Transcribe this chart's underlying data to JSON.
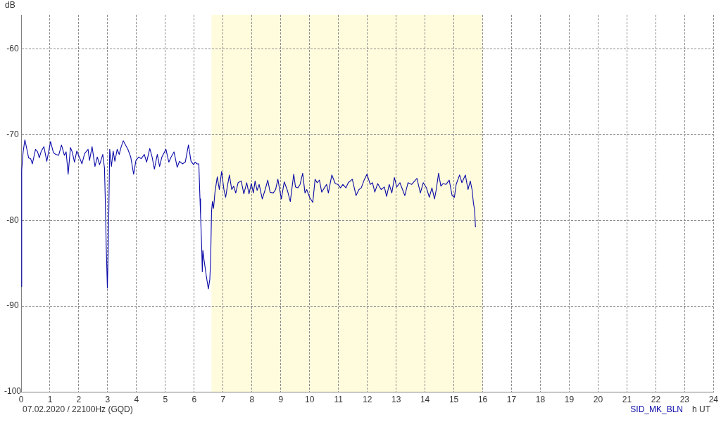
{
  "chart_data": {
    "type": "line",
    "ylabel": "dB",
    "xlabel": "h UT",
    "annotations": [
      "07.02.2020 / 22100Hz (GQD)"
    ],
    "x": [
      0,
      0.02,
      0.07,
      0.13,
      0.2,
      0.26,
      0.33,
      0.39,
      0.5,
      0.57,
      0.63,
      0.7,
      0.79,
      0.89,
      1.02,
      1.12,
      1.2,
      1.3,
      1.4,
      1.5,
      1.56,
      1.63,
      1.71,
      1.77,
      1.85,
      1.93,
      2.03,
      2.11,
      2.2,
      2.32,
      2.37,
      2.46,
      2.56,
      2.64,
      2.72,
      2.83,
      2.89,
      2.92,
      2.95,
      2.99,
      3.03,
      3.07,
      3.13,
      3.19,
      3.25,
      3.33,
      3.4,
      3.46,
      3.54,
      3.62,
      3.7,
      3.8,
      3.9,
      3.98,
      4.08,
      4.16,
      4.27,
      4.35,
      4.46,
      4.54,
      4.62,
      4.72,
      4.8,
      4.88,
      5.02,
      5.12,
      5.2,
      5.3,
      5.41,
      5.49,
      5.59,
      5.69,
      5.8,
      5.89,
      5.98,
      6.03,
      6.1,
      6.16,
      6.2,
      6.22,
      6.26,
      6.28,
      6.3,
      6.34,
      6.42,
      6.49,
      6.54,
      6.57,
      6.6,
      6.63,
      6.67,
      6.72,
      6.76,
      6.8,
      6.87,
      6.95,
      7.03,
      7.09,
      7.15,
      7.22,
      7.3,
      7.37,
      7.44,
      7.52,
      7.63,
      7.72,
      7.82,
      7.9,
      7.98,
      8.05,
      8.11,
      8.18,
      8.25,
      8.36,
      8.46,
      8.55,
      8.63,
      8.74,
      8.82,
      8.9,
      9.02,
      9.12,
      9.23,
      9.33,
      9.45,
      9.51,
      9.59,
      9.67,
      9.76,
      9.84,
      9.9,
      10.0,
      10.11,
      10.19,
      10.26,
      10.34,
      10.42,
      10.53,
      10.59,
      10.65,
      10.77,
      10.89,
      10.98,
      11.07,
      11.15,
      11.26,
      11.34,
      11.48,
      11.61,
      11.71,
      11.79,
      11.89,
      11.99,
      12.1,
      12.18,
      12.26,
      12.36,
      12.48,
      12.59,
      12.67,
      12.76,
      12.85,
      12.94,
      13.02,
      13.13,
      13.3,
      13.41,
      13.54,
      13.72,
      13.84,
      13.94,
      14.05,
      14.15,
      14.24,
      14.33,
      14.39,
      14.47,
      14.55,
      14.63,
      14.73,
      14.84,
      14.94,
      15.02,
      15.08,
      15.2,
      15.28,
      15.4,
      15.49,
      15.57,
      15.63,
      15.68,
      15.72,
      15.75
    ],
    "series": [
      {
        "name": "SID_MK_BLN",
        "color": "#0a0aa8",
        "values": [
          -87.7,
          -74.1,
          -72.0,
          -70.6,
          -71.7,
          -72.7,
          -72.8,
          -73.4,
          -71.7,
          -72.0,
          -72.7,
          -71.9,
          -71.4,
          -73.1,
          -70.8,
          -72.1,
          -72.3,
          -72.4,
          -71.2,
          -72.4,
          -72.0,
          -74.6,
          -71.5,
          -72.0,
          -73.2,
          -71.9,
          -72.7,
          -73.4,
          -72.2,
          -71.7,
          -73.0,
          -71.4,
          -73.7,
          -72.6,
          -73.5,
          -72.3,
          -73.9,
          -78.0,
          -83.0,
          -87.9,
          -81.4,
          -71.7,
          -73.7,
          -71.9,
          -73.1,
          -71.7,
          -72.3,
          -71.5,
          -70.7,
          -71.2,
          -71.7,
          -72.6,
          -74.6,
          -73.0,
          -72.6,
          -72.8,
          -72.3,
          -73.2,
          -71.6,
          -72.6,
          -74.0,
          -72.3,
          -73.7,
          -72.6,
          -71.7,
          -73.2,
          -72.6,
          -72.0,
          -73.8,
          -73.1,
          -73.4,
          -73.2,
          -71.2,
          -73.1,
          -73.5,
          -73.2,
          -73.4,
          -73.4,
          -77.5,
          -79.4,
          -83.2,
          -86.0,
          -83.5,
          -84.6,
          -86.5,
          -88.0,
          -86.9,
          -84.6,
          -79.0,
          -77.8,
          -78.6,
          -76.7,
          -75.8,
          -74.9,
          -76.4,
          -74.3,
          -76.4,
          -77.3,
          -76.0,
          -74.7,
          -76.4,
          -76.0,
          -76.8,
          -75.6,
          -75.4,
          -76.9,
          -75.6,
          -76.9,
          -75.7,
          -76.8,
          -75.4,
          -76.5,
          -75.8,
          -77.5,
          -76.4,
          -75.3,
          -76.7,
          -76.8,
          -76.4,
          -75.2,
          -77.5,
          -75.5,
          -76.5,
          -77.8,
          -74.6,
          -76.1,
          -76.2,
          -75.8,
          -74.5,
          -76.8,
          -76.4,
          -77.3,
          -77.9,
          -75.2,
          -75.6,
          -75.3,
          -76.7,
          -76.1,
          -75.8,
          -76.8,
          -74.7,
          -75.7,
          -75.8,
          -76.2,
          -75.8,
          -76.2,
          -75.6,
          -75.2,
          -77.1,
          -76.4,
          -76.2,
          -75.3,
          -74.6,
          -75.8,
          -75.6,
          -76.7,
          -75.7,
          -76.4,
          -76.1,
          -77.2,
          -75.8,
          -76.8,
          -75.0,
          -76.1,
          -75.6,
          -77.1,
          -75.6,
          -75.8,
          -75.1,
          -76.8,
          -75.6,
          -76.2,
          -77.3,
          -76.2,
          -77.5,
          -76.4,
          -74.5,
          -76.0,
          -75.7,
          -75.8,
          -75.3,
          -77.1,
          -77.3,
          -75.8,
          -74.7,
          -75.6,
          -74.7,
          -76.4,
          -75.4,
          -76.4,
          -78.0,
          -78.8,
          -80.8
        ]
      }
    ],
    "xlim": [
      0,
      24
    ],
    "xticks": [
      0,
      1,
      2,
      3,
      4,
      5,
      6,
      7,
      8,
      9,
      10,
      11,
      12,
      13,
      14,
      15,
      16,
      17,
      18,
      19,
      20,
      21,
      22,
      23,
      24
    ],
    "ylim": [
      -100,
      -56
    ],
    "yticks": [
      -100,
      -90,
      -80,
      -70,
      -60
    ],
    "grid": true,
    "marker": "none",
    "line_style": "solid",
    "bands": [
      {
        "axis": "x",
        "from": 6.6,
        "to": 16,
        "color": "#fffcdd"
      }
    ]
  }
}
